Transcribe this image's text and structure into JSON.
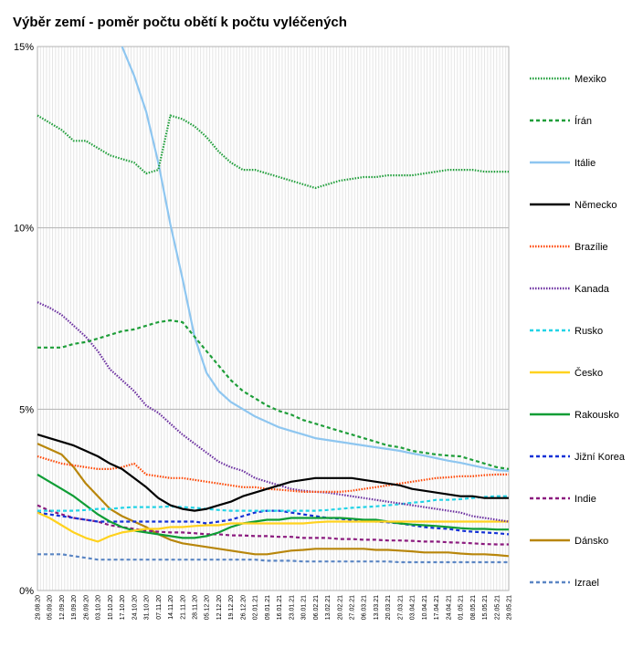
{
  "chart_data": {
    "type": "line",
    "title": "Výběr zemí - poměr počtu obětí k počtu vyléčených",
    "xlabel": "",
    "ylabel": "",
    "ylim": [
      0,
      15
    ],
    "y_ticks": [
      "0%",
      "5%",
      "10%",
      "15%"
    ],
    "y_tick_values": [
      0,
      5,
      10,
      15
    ],
    "grid": {
      "horizontal": true,
      "vertical": true
    },
    "legend_position": "right",
    "x_tick_labels": [
      "29.08.20",
      "05.09.20",
      "12.09.20",
      "19.09.20",
      "26.09.20",
      "03.10.20",
      "10.10.20",
      "17.10.20",
      "24.10.20",
      "31.10.20",
      "07.11.20",
      "14.11.20",
      "21.11.20",
      "28.11.20",
      "05.12.20",
      "12.12.20",
      "19.12.20",
      "26.12.20",
      "02.01.21",
      "09.01.21",
      "16.01.21",
      "23.01.21",
      "30.01.21",
      "06.02.21",
      "13.02.21",
      "20.02.21",
      "27.02.21",
      "06.03.21",
      "13.03.21",
      "20.03.21",
      "27.03.21",
      "03.04.21",
      "10.04.21",
      "17.04.21",
      "24.04.21",
      "01.05.21",
      "08.05.21",
      "15.05.21",
      "22.05.21",
      "29.05.21"
    ],
    "series": [
      {
        "name": "Mexiko",
        "color": "#1e9e39",
        "dash": "dotted",
        "values": [
          13.1,
          12.9,
          12.7,
          12.4,
          12.4,
          12.2,
          12.0,
          11.9,
          11.8,
          11.5,
          11.6,
          13.1,
          13.0,
          12.8,
          12.5,
          12.1,
          11.8,
          11.6,
          11.6,
          11.5,
          11.4,
          11.3,
          11.2,
          11.1,
          11.2,
          11.3,
          11.35,
          11.4,
          11.4,
          11.45,
          11.45,
          11.45,
          11.5,
          11.55,
          11.6,
          11.6,
          11.6,
          11.55,
          11.55,
          11.55
        ]
      },
      {
        "name": "Írán",
        "color": "#1e9e39",
        "dash": "dashed",
        "values": [
          6.7,
          6.7,
          6.7,
          6.8,
          6.85,
          6.95,
          7.05,
          7.15,
          7.2,
          7.3,
          7.4,
          7.45,
          7.4,
          7.0,
          6.6,
          6.2,
          5.8,
          5.5,
          5.3,
          5.1,
          4.95,
          4.85,
          4.7,
          4.6,
          4.5,
          4.4,
          4.3,
          4.2,
          4.1,
          4.0,
          3.95,
          3.85,
          3.8,
          3.75,
          3.72,
          3.7,
          3.6,
          3.5,
          3.4,
          3.35
        ]
      },
      {
        "name": "Itálie",
        "color": "#8ec6f0",
        "dash": "solid",
        "values": [
          null,
          null,
          null,
          null,
          null,
          null,
          null,
          15.0,
          14.2,
          13.2,
          11.8,
          10.1,
          8.6,
          7.0,
          6.0,
          5.5,
          5.2,
          5.0,
          4.8,
          4.65,
          4.5,
          4.4,
          4.3,
          4.2,
          4.15,
          4.1,
          4.05,
          4.0,
          3.95,
          3.9,
          3.85,
          3.78,
          3.72,
          3.65,
          3.58,
          3.52,
          3.45,
          3.38,
          3.32,
          3.3
        ]
      },
      {
        "name": "Německo",
        "color": "#000000",
        "dash": "solid",
        "values": [
          4.3,
          4.2,
          4.1,
          4.0,
          3.85,
          3.7,
          3.5,
          3.35,
          3.1,
          2.85,
          2.55,
          2.35,
          2.25,
          2.2,
          2.25,
          2.35,
          2.45,
          2.6,
          2.7,
          2.8,
          2.9,
          3.0,
          3.05,
          3.1,
          3.1,
          3.1,
          3.1,
          3.05,
          3.0,
          2.95,
          2.9,
          2.8,
          2.75,
          2.7,
          2.65,
          2.6,
          2.6,
          2.55,
          2.55,
          2.55
        ]
      },
      {
        "name": "Brazílie",
        "color": "#ff4500",
        "dash": "dotted",
        "values": [
          3.7,
          3.6,
          3.5,
          3.45,
          3.4,
          3.35,
          3.35,
          3.4,
          3.5,
          3.2,
          3.15,
          3.1,
          3.1,
          3.05,
          3.0,
          2.95,
          2.9,
          2.85,
          2.85,
          2.8,
          2.78,
          2.75,
          2.72,
          2.72,
          2.72,
          2.72,
          2.75,
          2.8,
          2.85,
          2.9,
          2.95,
          3.0,
          3.05,
          3.1,
          3.12,
          3.15,
          3.15,
          3.18,
          3.2,
          3.2
        ]
      },
      {
        "name": "Kanada",
        "color": "#6b2fa0",
        "dash": "dotted",
        "values": [
          7.95,
          7.8,
          7.6,
          7.3,
          7.0,
          6.6,
          6.1,
          5.8,
          5.5,
          5.1,
          4.9,
          4.6,
          4.3,
          4.05,
          3.8,
          3.55,
          3.4,
          3.3,
          3.1,
          3.0,
          2.9,
          2.8,
          2.75,
          2.72,
          2.7,
          2.65,
          2.6,
          2.55,
          2.5,
          2.45,
          2.4,
          2.35,
          2.3,
          2.25,
          2.2,
          2.15,
          2.05,
          2.0,
          1.95,
          1.9
        ]
      },
      {
        "name": "Rusko",
        "color": "#22d3e6",
        "dash": "dashed",
        "values": [
          2.2,
          2.2,
          2.2,
          2.2,
          2.22,
          2.25,
          2.25,
          2.28,
          2.3,
          2.3,
          2.3,
          2.32,
          2.3,
          2.28,
          2.25,
          2.22,
          2.2,
          2.2,
          2.2,
          2.2,
          2.2,
          2.2,
          2.2,
          2.2,
          2.22,
          2.25,
          2.28,
          2.3,
          2.32,
          2.35,
          2.38,
          2.42,
          2.45,
          2.5,
          2.5,
          2.52,
          2.55,
          2.58,
          2.6,
          2.6
        ]
      },
      {
        "name": "Česko",
        "color": "#ffd21f",
        "dash": "solid",
        "values": [
          2.15,
          2.0,
          1.8,
          1.6,
          1.45,
          1.35,
          1.5,
          1.6,
          1.65,
          1.7,
          1.7,
          1.75,
          1.75,
          1.78,
          1.8,
          1.8,
          1.85,
          1.85,
          1.85,
          1.85,
          1.85,
          1.85,
          1.85,
          1.88,
          1.9,
          1.9,
          1.9,
          1.9,
          1.9,
          1.9,
          1.9,
          1.9,
          1.9,
          1.9,
          1.9,
          1.9,
          1.9,
          1.9,
          1.9,
          1.9
        ]
      },
      {
        "name": "Rakousko",
        "color": "#0f9d35",
        "dash": "solid",
        "values": [
          3.2,
          3.0,
          2.8,
          2.6,
          2.35,
          2.1,
          1.9,
          1.75,
          1.65,
          1.6,
          1.55,
          1.5,
          1.45,
          1.45,
          1.5,
          1.6,
          1.75,
          1.85,
          1.9,
          1.95,
          1.95,
          2.0,
          2.0,
          2.0,
          2.0,
          2.0,
          1.98,
          1.95,
          1.95,
          1.9,
          1.85,
          1.82,
          1.8,
          1.78,
          1.75,
          1.72,
          1.7,
          1.7,
          1.68,
          1.68
        ]
      },
      {
        "name": "Jižní Korea",
        "color": "#1431d6",
        "dash": "dashed",
        "values": [
          2.15,
          2.1,
          2.05,
          2.0,
          1.95,
          1.9,
          1.9,
          1.9,
          1.9,
          1.9,
          1.9,
          1.9,
          1.9,
          1.9,
          1.85,
          1.9,
          1.95,
          2.05,
          2.15,
          2.2,
          2.2,
          2.15,
          2.1,
          2.05,
          2.0,
          1.98,
          1.95,
          1.92,
          1.9,
          1.88,
          1.85,
          1.8,
          1.75,
          1.72,
          1.7,
          1.65,
          1.62,
          1.6,
          1.58,
          1.55
        ]
      },
      {
        "name": "Indie",
        "color": "#8b1a7e",
        "dash": "dashed",
        "values": [
          2.35,
          2.2,
          2.1,
          2.0,
          1.95,
          1.9,
          1.8,
          1.75,
          1.7,
          1.65,
          1.62,
          1.6,
          1.6,
          1.58,
          1.55,
          1.55,
          1.52,
          1.52,
          1.5,
          1.5,
          1.48,
          1.48,
          1.45,
          1.45,
          1.45,
          1.42,
          1.42,
          1.4,
          1.4,
          1.38,
          1.38,
          1.37,
          1.35,
          1.35,
          1.33,
          1.32,
          1.3,
          1.28,
          1.27,
          1.27
        ]
      },
      {
        "name": "Dánsko",
        "color": "#b8860b",
        "dash": "solid",
        "values": [
          4.05,
          3.9,
          3.75,
          3.4,
          2.95,
          2.6,
          2.25,
          2.05,
          1.9,
          1.75,
          1.55,
          1.4,
          1.3,
          1.25,
          1.2,
          1.15,
          1.1,
          1.05,
          1.0,
          1.0,
          1.05,
          1.1,
          1.12,
          1.15,
          1.15,
          1.15,
          1.15,
          1.15,
          1.12,
          1.12,
          1.1,
          1.08,
          1.05,
          1.05,
          1.05,
          1.02,
          1.0,
          1.0,
          0.98,
          0.95
        ]
      },
      {
        "name": "Izrael",
        "color": "#5b86c4",
        "dash": "dashed",
        "values": [
          1.0,
          1.0,
          1.0,
          0.95,
          0.9,
          0.85,
          0.85,
          0.85,
          0.85,
          0.85,
          0.85,
          0.85,
          0.85,
          0.85,
          0.85,
          0.85,
          0.85,
          0.85,
          0.85,
          0.82,
          0.82,
          0.82,
          0.8,
          0.8,
          0.8,
          0.8,
          0.8,
          0.8,
          0.8,
          0.8,
          0.78,
          0.78,
          0.78,
          0.78,
          0.78,
          0.78,
          0.78,
          0.78,
          0.78,
          0.78
        ]
      }
    ]
  }
}
